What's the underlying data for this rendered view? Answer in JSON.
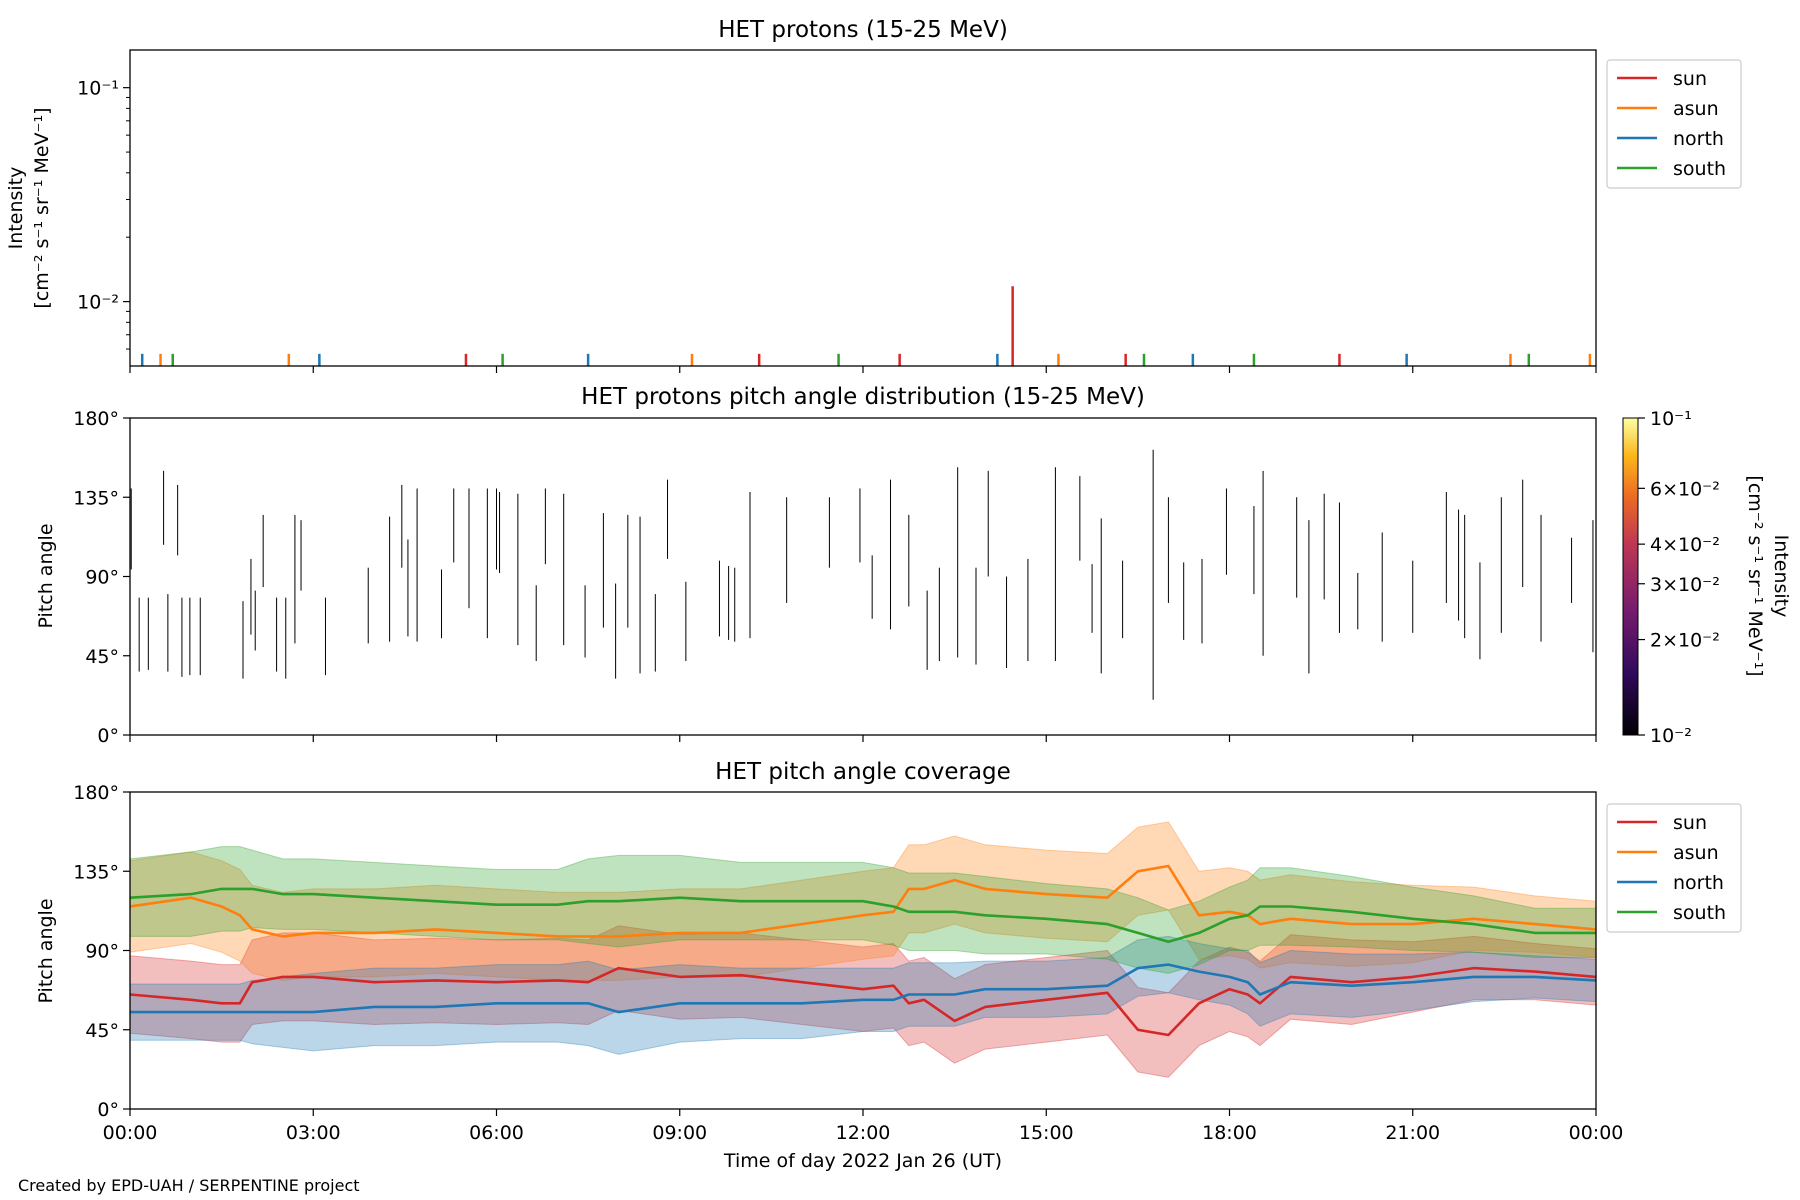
{
  "credit": "Created by EPD-UAH / SERPENTINE project",
  "colors": {
    "sun": "#d62728",
    "asun": "#ff7f0e",
    "north": "#1f77b4",
    "south": "#2ca02c",
    "bar": "#000000"
  },
  "chart_data": [
    {
      "type": "line",
      "title": "HET protons (15-25 MeV)",
      "ylabel": "Intensity [cm^-2 s^-1 sr^-1 MeV^-1]",
      "ylabel_line1": "Intensity",
      "ylabel_line2": "[cm⁻² s⁻¹ sr⁻¹ MeV⁻¹]",
      "yscale": "log",
      "ylim": [
        0.005,
        0.15
      ],
      "yticks": [
        {
          "value": 0.1,
          "label": "10⁻¹"
        },
        {
          "value": 0.01,
          "label": "10⁻²"
        }
      ],
      "legend": "top-right",
      "series": [
        {
          "name": "sun",
          "spikes": [
            {
              "x": 14.45,
              "y": 0.0118
            },
            {
              "x": 5.5,
              "y": 0.0057
            },
            {
              "x": 10.3,
              "y": 0.0057
            },
            {
              "x": 19.8,
              "y": 0.0057
            },
            {
              "x": 16.3,
              "y": 0.0057
            },
            {
              "x": 12.6,
              "y": 0.0057
            }
          ]
        },
        {
          "name": "asun",
          "spikes": [
            {
              "x": 0.5,
              "y": 0.0057
            },
            {
              "x": 2.6,
              "y": 0.0057
            },
            {
              "x": 9.2,
              "y": 0.0057
            },
            {
              "x": 15.2,
              "y": 0.0057
            },
            {
              "x": 22.6,
              "y": 0.0057
            },
            {
              "x": 23.9,
              "y": 0.0057
            }
          ]
        },
        {
          "name": "north",
          "spikes": [
            {
              "x": 0.2,
              "y": 0.0057
            },
            {
              "x": 3.1,
              "y": 0.0057
            },
            {
              "x": 7.5,
              "y": 0.0057
            },
            {
              "x": 14.2,
              "y": 0.0057
            },
            {
              "x": 17.4,
              "y": 0.0057
            },
            {
              "x": 20.9,
              "y": 0.0057
            }
          ]
        },
        {
          "name": "south",
          "spikes": [
            {
              "x": 0.7,
              "y": 0.0057
            },
            {
              "x": 6.1,
              "y": 0.0057
            },
            {
              "x": 11.6,
              "y": 0.0057
            },
            {
              "x": 16.6,
              "y": 0.0057
            },
            {
              "x": 18.4,
              "y": 0.0057
            },
            {
              "x": 22.9,
              "y": 0.0057
            }
          ]
        }
      ]
    },
    {
      "type": "heatmap",
      "title": "HET protons pitch angle distribution (15-25 MeV)",
      "ylabel": "Pitch angle",
      "ylim": [
        0,
        180
      ],
      "yticks": [
        {
          "value": 180,
          "label": "180°"
        },
        {
          "value": 135,
          "label": "135°"
        },
        {
          "value": 90,
          "label": "90°"
        },
        {
          "value": 45,
          "label": "45°"
        },
        {
          "value": 0,
          "label": "0°"
        }
      ],
      "colorbar": {
        "label": "Intensity [cm^-2 s^-1 sr^-1 MeV^-1]",
        "label_line1": "Intensity",
        "label_line2": "[cm⁻² s⁻¹ sr⁻¹ MeV⁻¹]",
        "scale": "log",
        "range": [
          0.01,
          0.1
        ],
        "ticks": [
          {
            "value": 0.1,
            "label": "10⁻¹"
          },
          {
            "value": 0.06,
            "label": "6×10⁻²"
          },
          {
            "value": 0.04,
            "label": "4×10⁻²"
          },
          {
            "value": 0.03,
            "label": "3×10⁻²"
          },
          {
            "value": 0.02,
            "label": "2×10⁻²"
          },
          {
            "value": 0.01,
            "label": "10⁻²"
          }
        ]
      },
      "segments": [
        [
          0.02,
          94,
          140
        ],
        [
          0.15,
          36,
          78
        ],
        [
          0.3,
          37,
          78
        ],
        [
          0.55,
          108,
          150
        ],
        [
          0.62,
          36,
          80
        ],
        [
          0.78,
          102,
          142
        ],
        [
          0.85,
          33,
          78
        ],
        [
          0.98,
          34,
          78
        ],
        [
          1.15,
          34,
          78
        ],
        [
          1.85,
          32,
          76
        ],
        [
          1.98,
          57,
          100
        ],
        [
          2.05,
          48,
          82
        ],
        [
          2.18,
          84,
          125
        ],
        [
          2.4,
          36,
          78
        ],
        [
          2.55,
          32,
          78
        ],
        [
          2.7,
          52,
          125
        ],
        [
          2.8,
          82,
          122
        ],
        [
          3.2,
          34,
          78
        ],
        [
          3.9,
          52,
          95
        ],
        [
          4.25,
          53,
          124
        ],
        [
          4.45,
          95,
          142
        ],
        [
          4.55,
          56,
          111
        ],
        [
          4.7,
          53,
          140
        ],
        [
          5.1,
          55,
          94
        ],
        [
          5.3,
          98,
          140
        ],
        [
          5.55,
          72,
          140
        ],
        [
          5.85,
          55,
          140
        ],
        [
          6.0,
          94,
          140
        ],
        [
          6.05,
          92,
          138
        ],
        [
          6.35,
          51,
          137
        ],
        [
          6.65,
          42,
          85
        ],
        [
          6.8,
          97,
          140
        ],
        [
          7.1,
          51,
          137
        ],
        [
          7.45,
          44,
          85
        ],
        [
          7.75,
          61,
          126
        ],
        [
          7.95,
          32,
          86
        ],
        [
          8.15,
          61,
          125
        ],
        [
          8.35,
          35,
          124
        ],
        [
          8.6,
          36,
          80
        ],
        [
          8.8,
          100,
          145
        ],
        [
          9.1,
          42,
          87
        ],
        [
          9.65,
          56,
          99
        ],
        [
          9.9,
          53,
          95
        ],
        [
          9.8,
          54,
          96
        ],
        [
          10.15,
          55,
          138
        ],
        [
          10.75,
          75,
          135
        ],
        [
          11.45,
          95,
          135
        ],
        [
          11.95,
          98,
          140
        ],
        [
          12.15,
          66,
          102
        ],
        [
          12.45,
          60,
          145
        ],
        [
          12.75,
          73,
          125
        ],
        [
          13.05,
          37,
          82
        ],
        [
          13.25,
          42,
          95
        ],
        [
          13.55,
          44,
          152
        ],
        [
          13.85,
          40,
          95
        ],
        [
          14.05,
          90,
          150
        ],
        [
          14.35,
          38,
          90
        ],
        [
          14.7,
          42,
          100
        ],
        [
          15.15,
          42,
          152
        ],
        [
          15.55,
          99,
          147
        ],
        [
          15.75,
          58,
          97
        ],
        [
          15.9,
          35,
          123
        ],
        [
          16.25,
          55,
          99
        ],
        [
          16.75,
          20,
          162
        ],
        [
          17.0,
          75,
          135
        ],
        [
          17.25,
          54,
          98
        ],
        [
          17.55,
          52,
          100
        ],
        [
          17.95,
          91,
          140
        ],
        [
          18.4,
          80,
          130
        ],
        [
          18.55,
          45,
          150
        ],
        [
          19.1,
          78,
          135
        ],
        [
          19.3,
          35,
          122
        ],
        [
          19.55,
          77,
          137
        ],
        [
          19.8,
          58,
          132
        ],
        [
          20.1,
          60,
          92
        ],
        [
          20.5,
          53,
          115
        ],
        [
          21.0,
          58,
          99
        ],
        [
          21.55,
          75,
          138
        ],
        [
          21.75,
          65,
          128
        ],
        [
          21.85,
          55,
          125
        ],
        [
          22.1,
          43,
          98
        ],
        [
          22.45,
          58,
          135
        ],
        [
          22.8,
          84,
          145
        ],
        [
          23.1,
          53,
          125
        ],
        [
          23.6,
          75,
          112
        ],
        [
          23.95,
          47,
          122
        ]
      ]
    },
    {
      "type": "area",
      "title": "HET pitch angle coverage",
      "ylabel": "Pitch angle",
      "xlabel": "Time of day 2022 Jan 26 (UT)",
      "xlim": [
        0,
        24
      ],
      "xticks": [
        {
          "value": 0,
          "label": "00:00"
        },
        {
          "value": 3,
          "label": "03:00"
        },
        {
          "value": 6,
          "label": "06:00"
        },
        {
          "value": 9,
          "label": "09:00"
        },
        {
          "value": 12,
          "label": "12:00"
        },
        {
          "value": 15,
          "label": "15:00"
        },
        {
          "value": 18,
          "label": "18:00"
        },
        {
          "value": 21,
          "label": "21:00"
        },
        {
          "value": 24,
          "label": "00:00"
        }
      ],
      "ylim": [
        0,
        180
      ],
      "yticks": [
        {
          "value": 180,
          "label": "180°"
        },
        {
          "value": 135,
          "label": "135°"
        },
        {
          "value": 90,
          "label": "90°"
        },
        {
          "value": 45,
          "label": "45°"
        },
        {
          "value": 0,
          "label": "0°"
        }
      ],
      "legend": "top-right",
      "x": [
        0,
        1,
        1.5,
        1.8,
        2,
        2.5,
        3,
        4,
        5,
        6,
        7,
        7.5,
        8,
        9,
        10,
        11,
        12,
        12.5,
        12.75,
        13,
        13.5,
        14,
        15,
        16,
        16.5,
        17,
        17.5,
        18,
        18.3,
        18.5,
        19,
        20,
        21,
        22,
        23,
        24
      ],
      "series": [
        {
          "name": "sun",
          "center": [
            65,
            62,
            60,
            60,
            72,
            75,
            75,
            72,
            73,
            72,
            73,
            72,
            80,
            75,
            76,
            72,
            68,
            70,
            60,
            62,
            50,
            58,
            62,
            66,
            45,
            42,
            60,
            68,
            65,
            60,
            75,
            72,
            75,
            80,
            78,
            75
          ],
          "half_width": [
            22,
            22,
            22,
            22,
            24,
            25,
            25,
            24,
            24,
            24,
            24,
            24,
            24,
            24,
            24,
            24,
            24,
            24,
            24,
            24,
            24,
            24,
            24,
            24,
            24,
            24,
            24,
            24,
            24,
            24,
            24,
            24,
            20,
            18,
            16,
            16
          ]
        },
        {
          "name": "asun",
          "center": [
            115,
            120,
            115,
            110,
            102,
            98,
            100,
            100,
            102,
            100,
            98,
            98,
            98,
            100,
            100,
            105,
            110,
            112,
            125,
            125,
            130,
            125,
            122,
            120,
            135,
            138,
            110,
            112,
            110,
            105,
            108,
            105,
            105,
            108,
            105,
            102
          ],
          "half_width": [
            26,
            26,
            26,
            26,
            25,
            25,
            25,
            25,
            25,
            25,
            25,
            25,
            25,
            25,
            25,
            25,
            25,
            25,
            25,
            25,
            25,
            25,
            25,
            25,
            25,
            25,
            25,
            25,
            25,
            25,
            25,
            24,
            22,
            18,
            16,
            16
          ]
        },
        {
          "name": "north",
          "center": [
            55,
            55,
            55,
            55,
            55,
            55,
            55,
            58,
            58,
            60,
            60,
            60,
            55,
            60,
            60,
            60,
            62,
            62,
            65,
            65,
            65,
            68,
            68,
            70,
            80,
            82,
            78,
            75,
            72,
            65,
            72,
            70,
            72,
            75,
            75,
            73
          ],
          "half_width": [
            16,
            16,
            16,
            16,
            18,
            20,
            22,
            22,
            22,
            22,
            22,
            24,
            24,
            22,
            20,
            20,
            18,
            18,
            18,
            18,
            18,
            16,
            16,
            16,
            16,
            16,
            16,
            16,
            18,
            18,
            18,
            18,
            16,
            14,
            12,
            12
          ]
        },
        {
          "name": "south",
          "center": [
            120,
            122,
            125,
            125,
            125,
            122,
            122,
            120,
            118,
            116,
            116,
            118,
            118,
            120,
            118,
            118,
            118,
            115,
            112,
            112,
            112,
            110,
            108,
            105,
            100,
            95,
            100,
            108,
            110,
            115,
            115,
            112,
            108,
            105,
            100,
            100
          ],
          "half_width": [
            22,
            24,
            24,
            24,
            22,
            20,
            20,
            20,
            20,
            20,
            20,
            24,
            26,
            24,
            22,
            22,
            22,
            22,
            22,
            22,
            22,
            22,
            20,
            20,
            20,
            18,
            18,
            18,
            20,
            22,
            22,
            20,
            18,
            16,
            14,
            14
          ]
        }
      ]
    }
  ]
}
